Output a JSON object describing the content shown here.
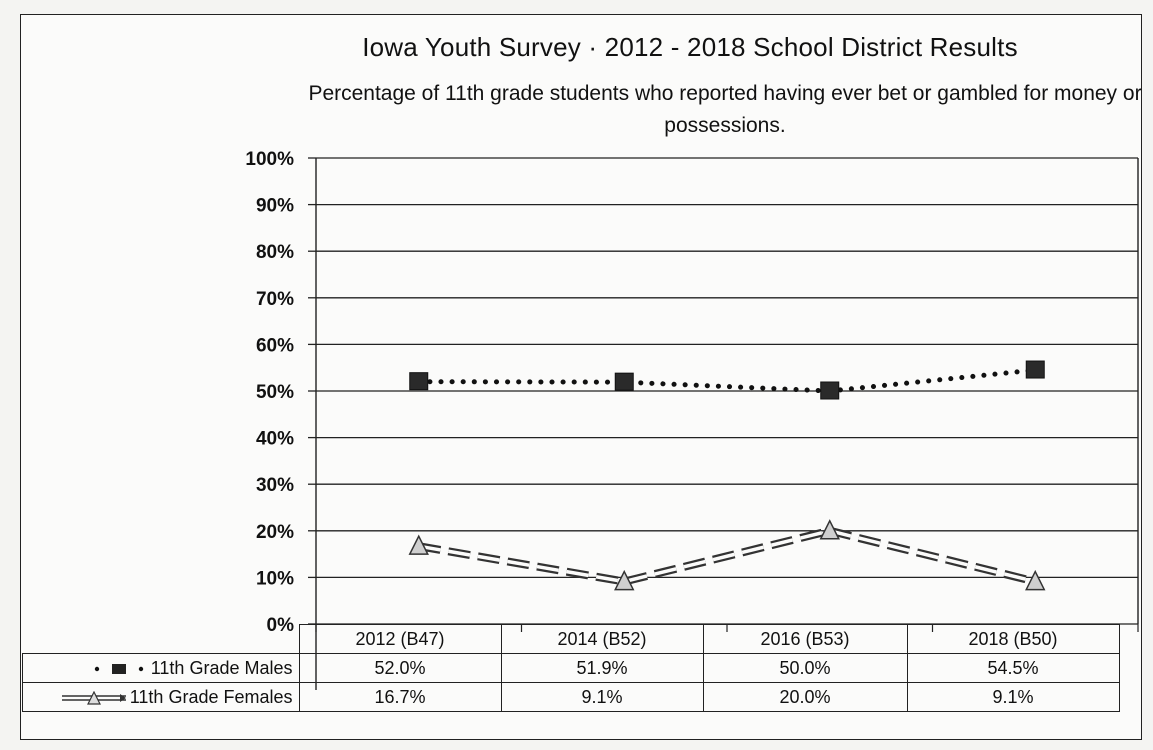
{
  "chart_data": {
    "type": "line",
    "title": "Iowa Youth Survey · 2012 - 2018 School District Results",
    "subtitle": "Percentage of 11th grade students who reported having ever bet or gambled for money or possessions.",
    "categories": [
      "2012 (B47)",
      "2014 (B52)",
      "2016 (B53)",
      "2018 (B50)"
    ],
    "y_ticks": [
      "100%",
      "90%",
      "80%",
      "70%",
      "60%",
      "50%",
      "40%",
      "30%",
      "20%",
      "10%",
      "0%"
    ],
    "ylim": [
      0,
      100
    ],
    "grid": true,
    "legend_placement": "data table (left)",
    "series": [
      {
        "name": "11th Grade Males",
        "values": [
          52.0,
          51.9,
          50.0,
          54.5
        ],
        "labels": [
          "52.0%",
          "51.9%",
          "50.0%",
          "54.5%"
        ],
        "line_style": "dotted",
        "color": "#111111"
      },
      {
        "name": "11th Grade Females",
        "values": [
          16.7,
          9.1,
          20.0,
          9.1
        ],
        "labels": [
          "16.7%",
          "9.1%",
          "20.0%",
          "9.1%"
        ],
        "line_style": "double-dashed",
        "color": "#333333"
      }
    ]
  }
}
